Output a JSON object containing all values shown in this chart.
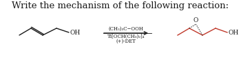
{
  "title": "Write the mechanism of the following reaction:",
  "title_fontsize": 9.5,
  "reagent_line1": "(CH₃)₃C−OOH",
  "reagent_line2": "Ti[OCH(CH₃)₂]₄",
  "reagent_line3": "(+)-DET",
  "oh_label": "OH",
  "o_label": "O",
  "background": "#ffffff",
  "black": "#1a1a1a",
  "red": "#c0392b",
  "fig_w": 3.5,
  "fig_h": 0.87,
  "dpi": 100
}
